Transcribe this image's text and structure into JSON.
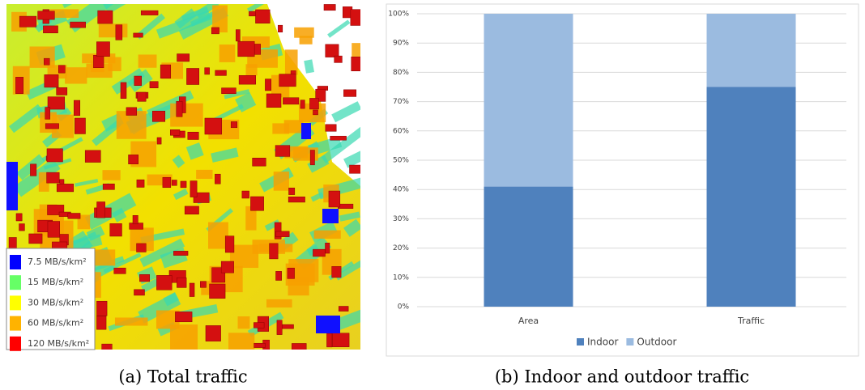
{
  "map_panel": {
    "caption": "(a) Total traffic",
    "legend": [
      {
        "label": "7.5 MB/s/km²",
        "color": "#0000ff"
      },
      {
        "label": "15 MB/s/km²",
        "color": "#66ff66"
      },
      {
        "label": "30 MB/s/km²",
        "color": "#ffff00"
      },
      {
        "label": "60 MB/s/km²",
        "color": "#ffb300"
      },
      {
        "label": "120 MB/s/km²",
        "color": "#ff0000"
      }
    ]
  },
  "chart_data": {
    "type": "stacked_bar",
    "caption": "(b) Indoor and outdoor traffic",
    "categories": [
      "Area",
      "Traffic"
    ],
    "series": [
      {
        "name": "Indoor",
        "color": "#4f81bd",
        "values": [
          41,
          75
        ]
      },
      {
        "name": "Outdoor",
        "color": "#9bbbe0",
        "values": [
          59,
          25
        ]
      }
    ],
    "ylim": [
      0,
      100
    ],
    "yticks": [
      {
        "value": 0,
        "label": "0%"
      },
      {
        "value": 10,
        "label": "10%"
      },
      {
        "value": 20,
        "label": "20%"
      },
      {
        "value": 30,
        "label": "30%"
      },
      {
        "value": 40,
        "label": "40%"
      },
      {
        "value": 50,
        "label": "50%"
      },
      {
        "value": 60,
        "label": "60%"
      },
      {
        "value": 70,
        "label": "70%"
      },
      {
        "value": 80,
        "label": "80%"
      },
      {
        "value": 90,
        "label": "90%"
      },
      {
        "value": 100,
        "label": "100%"
      }
    ],
    "grid": true,
    "legend": "bottom"
  }
}
